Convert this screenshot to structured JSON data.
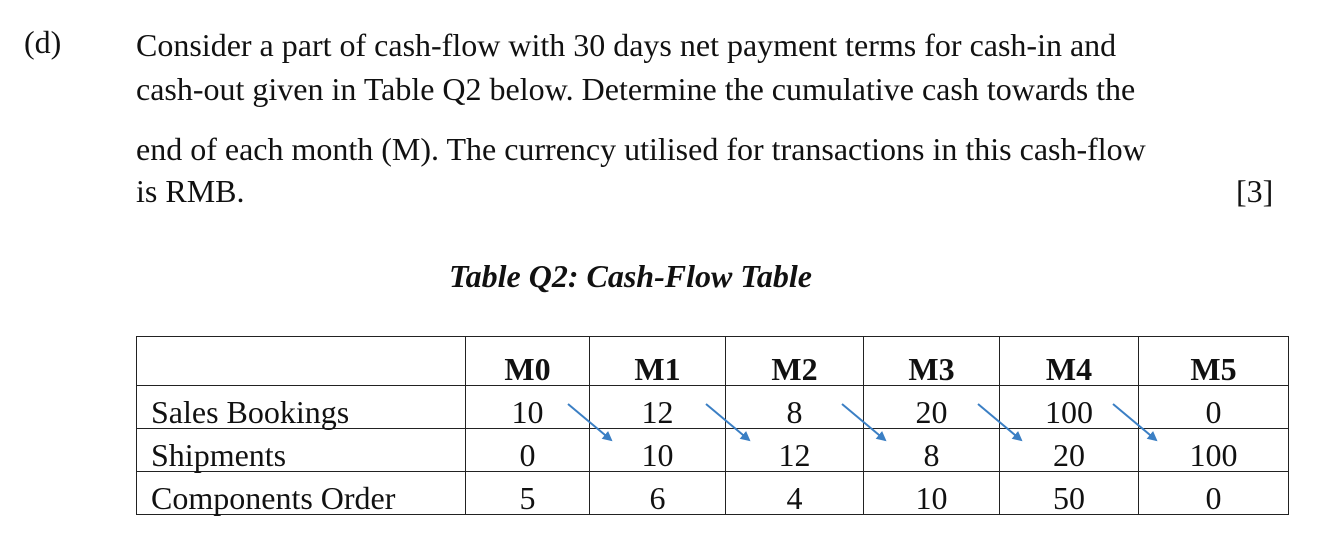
{
  "question": {
    "label": "(d)",
    "lines": [
      "Consider a part of cash-flow with 30 days net payment terms for cash-in and",
      "cash-out given in Table Q2 below. Determine the cumulative cash towards the",
      "end of each month (M). The currency utilised for transactions in this cash-flow",
      "is RMB."
    ],
    "marks": "[3]"
  },
  "table": {
    "caption": "Table Q2: Cash-Flow Table",
    "headers": [
      "",
      "M0",
      "M1",
      "M2",
      "M3",
      "M4",
      "M5"
    ],
    "rows": [
      {
        "label": "Sales Bookings",
        "values": [
          "10",
          "12",
          "8",
          "20",
          "100",
          "0"
        ]
      },
      {
        "label": "Shipments",
        "values": [
          "0",
          "10",
          "12",
          "8",
          "20",
          "100"
        ]
      },
      {
        "label": "Components Order",
        "values": [
          "5",
          "6",
          "4",
          "10",
          "50",
          "0"
        ]
      }
    ]
  },
  "colors": {
    "arrow": "#3b7fc4"
  }
}
